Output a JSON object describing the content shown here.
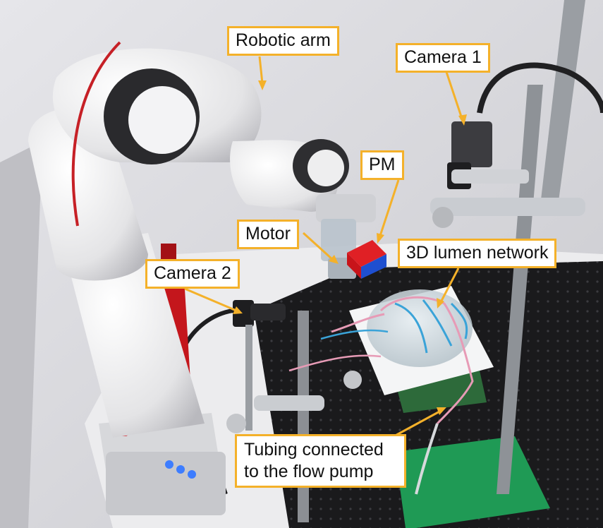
{
  "labels": {
    "robotic_arm": "Robotic arm",
    "camera_1": "Camera 1",
    "pm": "PM",
    "motor": "Motor",
    "lumen_network": "3D lumen network",
    "camera_2": "Camera 2",
    "tubing_line_1": "Tubing connected",
    "tubing_line_2": "to the flow pump"
  },
  "colors": {
    "callout_border": "#f4b12a",
    "callout_fill": "#ffffff",
    "magnet_red": "#d8141a",
    "magnet_blue": "#1e4fd0",
    "breadboard": "#1a1a1c",
    "green_base": "#1f9a55"
  }
}
